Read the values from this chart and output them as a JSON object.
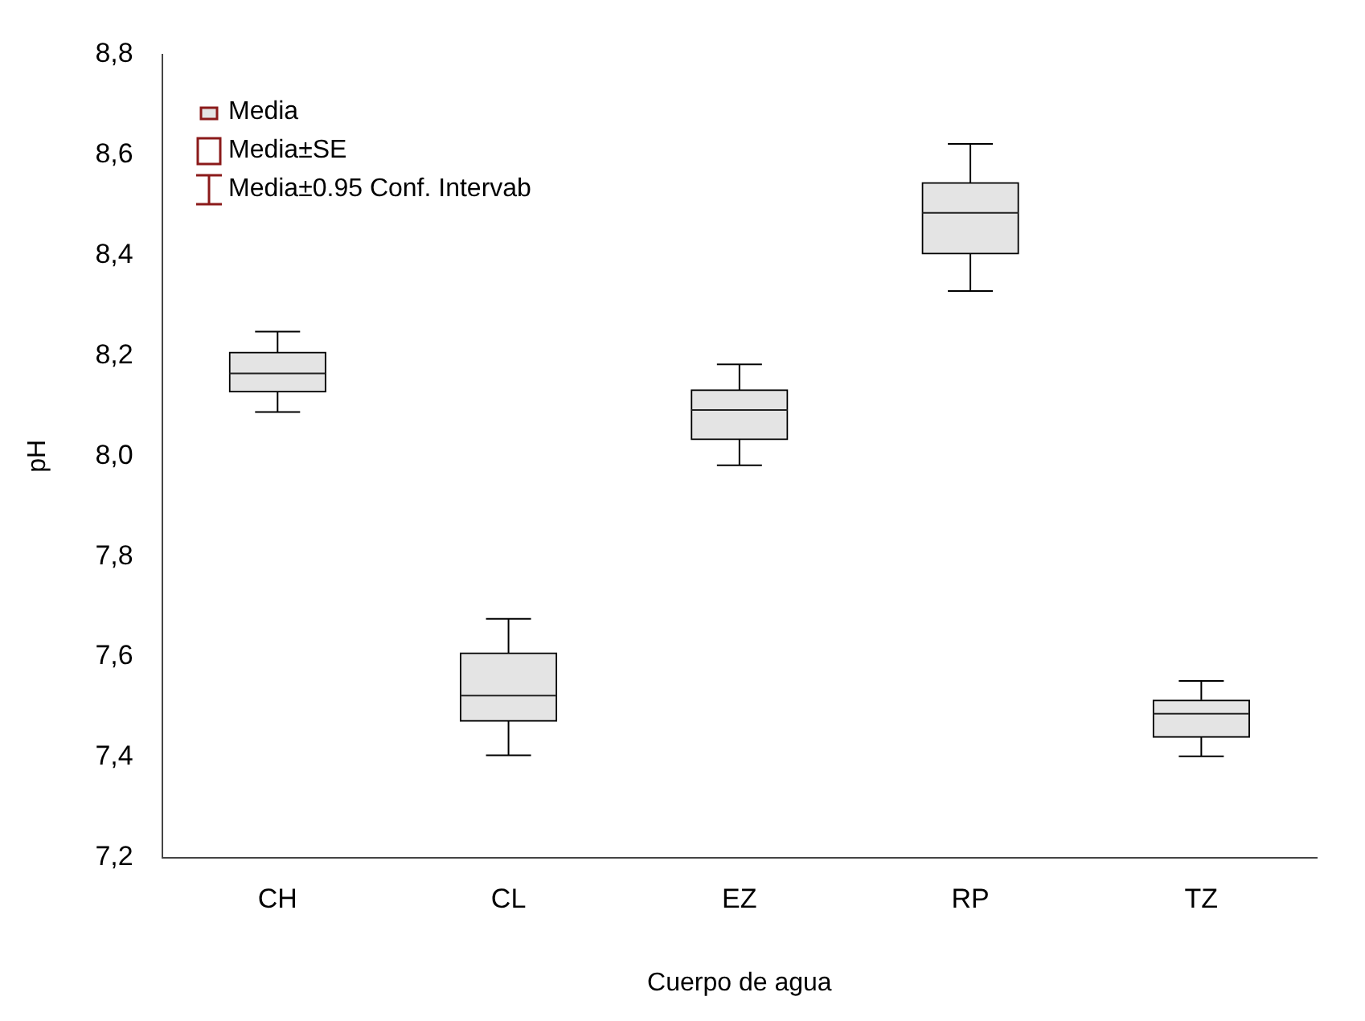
{
  "chart_data": {
    "type": "box",
    "xlabel": "Cuerpo de agua",
    "ylabel": "pH",
    "categories": [
      "CH",
      "CL",
      "EZ",
      "RP",
      "TZ"
    ],
    "boxes": [
      {
        "low": 8.088,
        "q1": 8.128,
        "median": 8.165,
        "q3": 8.207,
        "high": 8.248
      },
      {
        "low": 7.404,
        "q1": 7.472,
        "median": 7.523,
        "q3": 7.608,
        "high": 7.676
      },
      {
        "low": 7.982,
        "q1": 8.033,
        "median": 8.092,
        "q3": 8.132,
        "high": 8.183
      },
      {
        "low": 8.329,
        "q1": 8.403,
        "median": 8.485,
        "q3": 8.545,
        "high": 8.622
      },
      {
        "low": 7.402,
        "q1": 7.44,
        "median": 7.487,
        "q3": 7.514,
        "high": 7.552
      }
    ],
    "ylim": [
      7.2,
      8.8
    ],
    "yticks": [
      {
        "value": 7.2,
        "label": "7,2"
      },
      {
        "value": 7.4,
        "label": "7,4"
      },
      {
        "value": 7.6,
        "label": "7,6"
      },
      {
        "value": 7.8,
        "label": "7,8"
      },
      {
        "value": 8.0,
        "label": "8,0"
      },
      {
        "value": 8.2,
        "label": "8,2"
      },
      {
        "value": 8.4,
        "label": "8,4"
      },
      {
        "value": 8.6,
        "label": "8,6"
      },
      {
        "value": 8.8,
        "label": "8,8"
      }
    ],
    "grid": false,
    "annotations": [
      "Media",
      "Media±SE",
      "Media±0.95 Conf. Intervab"
    ]
  }
}
